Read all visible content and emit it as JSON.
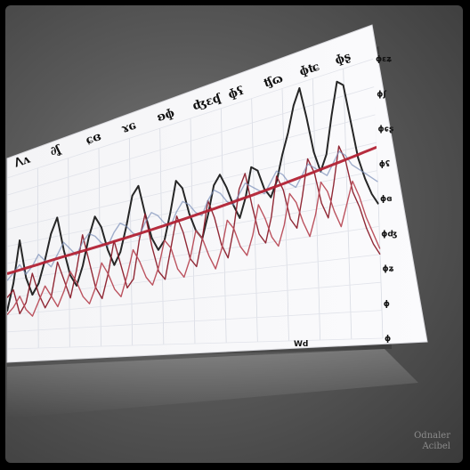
{
  "chart_data": {
    "type": "line",
    "title": "",
    "xlabel": "Wd",
    "ylabel": "",
    "x_count": 60,
    "ylim": [
      0,
      100
    ],
    "grid": true,
    "legend": "none",
    "series": [
      {
        "name": "series-1",
        "color": "#1a1a1a",
        "values": [
          22,
          38,
          62,
          40,
          30,
          36,
          48,
          62,
          70,
          52,
          38,
          32,
          42,
          56,
          66,
          60,
          48,
          40,
          46,
          58,
          72,
          76,
          62,
          50,
          44,
          48,
          60,
          74,
          70,
          58,
          50,
          46,
          56,
          68,
          72,
          66,
          58,
          52,
          60,
          72,
          70,
          62,
          58,
          64,
          74,
          82,
          92,
          98,
          86,
          72,
          64,
          70,
          84,
          96,
          94,
          80,
          66,
          58,
          52,
          48
        ]
      },
      {
        "name": "series-2",
        "color": "#8b1e2b",
        "values": [
          30,
          34,
          20,
          26,
          42,
          30,
          22,
          28,
          46,
          36,
          26,
          40,
          58,
          44,
          30,
          24,
          36,
          52,
          40,
          28,
          32,
          50,
          62,
          46,
          34,
          30,
          44,
          58,
          50,
          38,
          34,
          46,
          62,
          54,
          42,
          36,
          48,
          64,
          70,
          56,
          44,
          40,
          50,
          66,
          60,
          48,
          44,
          56,
          70,
          64,
          52,
          46,
          58,
          72,
          66,
          54,
          48,
          40,
          34,
          30
        ]
      },
      {
        "name": "series-3",
        "color": "#b84a56",
        "values": [
          20,
          24,
          30,
          22,
          18,
          26,
          34,
          28,
          22,
          30,
          40,
          34,
          26,
          22,
          30,
          42,
          36,
          28,
          24,
          34,
          46,
          40,
          32,
          28,
          36,
          48,
          44,
          34,
          30,
          38,
          50,
          46,
          38,
          32,
          40,
          52,
          48,
          40,
          36,
          44,
          56,
          50,
          42,
          38,
          46,
          58,
          54,
          46,
          40,
          48,
          60,
          56,
          48,
          42,
          50,
          58,
          52,
          44,
          38,
          32
        ]
      },
      {
        "name": "series-4",
        "color": "#7b8fb8",
        "values": [
          40,
          44,
          48,
          42,
          46,
          52,
          48,
          44,
          50,
          56,
          52,
          48,
          54,
          58,
          56,
          52,
          50,
          56,
          60,
          58,
          54,
          52,
          58,
          62,
          60,
          56,
          54,
          60,
          64,
          62,
          58,
          56,
          62,
          66,
          64,
          60,
          58,
          62,
          66,
          64,
          62,
          60,
          64,
          68,
          66,
          62,
          60,
          64,
          68,
          66,
          64,
          62,
          66,
          70,
          68,
          64,
          62,
          60,
          58,
          56
        ]
      },
      {
        "name": "trend",
        "color": "#b22234",
        "values": [
          44,
          44.5,
          45,
          45.5,
          46,
          46.5,
          47,
          47.5,
          48,
          48.4,
          48.8,
          49.2,
          49.6,
          50,
          50.4,
          50.8,
          51.2,
          51.6,
          52,
          52.4,
          52.8,
          53.2,
          53.6,
          54,
          54.4,
          54.8,
          55.2,
          55.6,
          56,
          56.4,
          56.8,
          57.2,
          57.6,
          58,
          58.4,
          58.8,
          59.2,
          59.6,
          60,
          60.4,
          60.8,
          61.2,
          61.6,
          62,
          62.4,
          62.8,
          63.2,
          63.6,
          64,
          64.4,
          64.8,
          65.2,
          65.6,
          66,
          66.4,
          66.8,
          67.2,
          67.6,
          68,
          68.4
        ]
      }
    ],
    "title_marks": [
      "ᐱʌ",
      "∂ʆ",
      "ɕɞ",
      "ɤɢ",
      "ʚɸ",
      "ʤɛʠ",
      "ɸʢ",
      "ʧɷ",
      "ɸʨ",
      "ɸʂ"
    ],
    "y_ticks_right": [
      "ɸɛʑ",
      "ɸʃ",
      "ɸɕʂ",
      "ɸʢ",
      "ɸɞ",
      "ɸʤ",
      "ɸʑ",
      "ɸ",
      "ɸ"
    ]
  },
  "watermark": {
    "line1": "Odnaler",
    "line2": "Acibel"
  }
}
